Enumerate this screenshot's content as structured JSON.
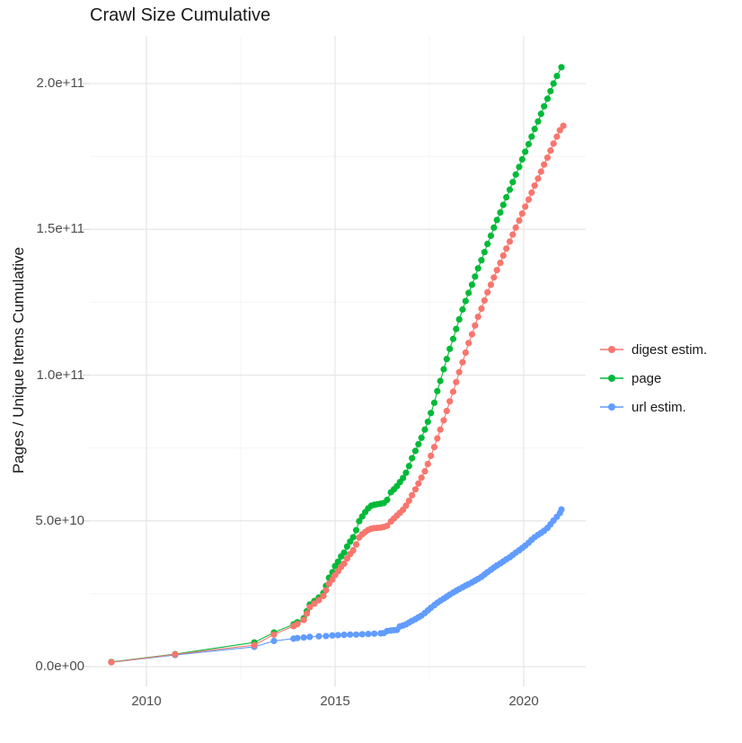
{
  "chart_data": {
    "type": "scatter+line",
    "title": "Crawl Size Cumulative",
    "xlabel": "",
    "ylabel": "Pages / Unique Items Cumulative",
    "legend_position": "right",
    "grid": true,
    "value_unit": "pages, values in billions (1e9)",
    "x_range_years": [
      2008.5,
      2021.65
    ],
    "y_range_1e9": [
      -4.3,
      216.3
    ],
    "x_ticks": [
      {
        "value": 2010,
        "label": "2010"
      },
      {
        "value": 2015,
        "label": "2015"
      },
      {
        "value": 2020,
        "label": "2020"
      }
    ],
    "x_minor_years": [
      2012.5,
      2017.5
    ],
    "y_ticks": [
      {
        "value_1e9": 0,
        "label": "0.0e+00"
      },
      {
        "value_1e9": 50,
        "label": "5.0e+10"
      },
      {
        "value_1e9": 100,
        "label": "1.0e+11"
      },
      {
        "value_1e9": 150,
        "label": "1.5e+11"
      },
      {
        "value_1e9": 200,
        "label": "2.0e+11"
      }
    ],
    "y_minor_1e9": [
      25,
      75,
      125,
      175
    ],
    "series": [
      {
        "name": "digest estim.",
        "color": "#F8766D",
        "points": [
          [
            2009.07,
            1.5
          ],
          [
            2010.76,
            4.2
          ],
          [
            2012.86,
            7.4
          ],
          [
            2013.38,
            11.0
          ],
          [
            2013.9,
            13.9
          ],
          [
            2014.0,
            14.6
          ],
          [
            2014.17,
            16.0
          ],
          [
            2014.25,
            18.2
          ],
          [
            2014.33,
            20.4
          ],
          [
            2014.45,
            21.6
          ],
          [
            2014.57,
            22.8
          ],
          [
            2014.69,
            24.2
          ],
          [
            2014.76,
            26.2
          ],
          [
            2014.84,
            28.4
          ],
          [
            2014.93,
            29.9
          ],
          [
            2015.0,
            31.4
          ],
          [
            2015.08,
            32.7
          ],
          [
            2015.16,
            34.2
          ],
          [
            2015.24,
            35.3
          ],
          [
            2015.32,
            37.1
          ],
          [
            2015.4,
            38.6
          ],
          [
            2015.48,
            39.9
          ],
          [
            2015.56,
            41.9
          ],
          [
            2015.64,
            44.3
          ],
          [
            2015.72,
            45.4
          ],
          [
            2015.8,
            46.2
          ],
          [
            2015.88,
            46.9
          ],
          [
            2015.96,
            47.3
          ],
          [
            2016.04,
            47.5
          ],
          [
            2016.12,
            47.6
          ],
          [
            2016.21,
            47.7
          ],
          [
            2016.29,
            47.9
          ],
          [
            2016.38,
            48.3
          ],
          [
            2016.48,
            49.8
          ],
          [
            2016.56,
            50.8
          ],
          [
            2016.64,
            51.8
          ],
          [
            2016.72,
            52.8
          ],
          [
            2016.8,
            53.8
          ],
          [
            2016.88,
            55.2
          ],
          [
            2016.96,
            56.9
          ],
          [
            2017.04,
            58.8
          ],
          [
            2017.13,
            60.8
          ],
          [
            2017.21,
            62.8
          ],
          [
            2017.29,
            64.8
          ],
          [
            2017.38,
            67.0
          ],
          [
            2017.46,
            69.5
          ],
          [
            2017.54,
            72.3
          ],
          [
            2017.63,
            75.3
          ],
          [
            2017.71,
            78.3
          ],
          [
            2017.79,
            81.3
          ],
          [
            2017.88,
            84.5
          ],
          [
            2017.96,
            87.7
          ],
          [
            2018.04,
            91.0
          ],
          [
            2018.13,
            94.3
          ],
          [
            2018.21,
            97.6
          ],
          [
            2018.29,
            101.0
          ],
          [
            2018.38,
            104.4
          ],
          [
            2018.46,
            107.7
          ],
          [
            2018.54,
            111.0
          ],
          [
            2018.63,
            114.0
          ],
          [
            2018.71,
            117.0
          ],
          [
            2018.79,
            120.0
          ],
          [
            2018.88,
            122.8
          ],
          [
            2018.96,
            125.6
          ],
          [
            2019.04,
            128.4
          ],
          [
            2019.13,
            131.0
          ],
          [
            2019.21,
            133.5
          ],
          [
            2019.29,
            136.0
          ],
          [
            2019.38,
            138.5
          ],
          [
            2019.46,
            141.0
          ],
          [
            2019.54,
            143.4
          ],
          [
            2019.63,
            145.8
          ],
          [
            2019.71,
            148.2
          ],
          [
            2019.79,
            150.6
          ],
          [
            2019.88,
            153.0
          ],
          [
            2019.96,
            155.4
          ],
          [
            2020.04,
            157.8
          ],
          [
            2020.13,
            160.2
          ],
          [
            2020.21,
            162.6
          ],
          [
            2020.29,
            165.0
          ],
          [
            2020.38,
            167.4
          ],
          [
            2020.46,
            169.8
          ],
          [
            2020.54,
            172.2
          ],
          [
            2020.63,
            174.6
          ],
          [
            2020.71,
            177.0
          ],
          [
            2020.79,
            179.4
          ],
          [
            2020.88,
            181.8
          ],
          [
            2020.96,
            184.0
          ],
          [
            2021.05,
            185.5
          ]
        ]
      },
      {
        "name": "page",
        "color": "#00BA38",
        "points": [
          [
            2009.07,
            1.6
          ],
          [
            2010.76,
            4.3
          ],
          [
            2012.86,
            8.3
          ],
          [
            2013.38,
            11.7
          ],
          [
            2013.9,
            14.5
          ],
          [
            2014.0,
            15.2
          ],
          [
            2014.17,
            16.6
          ],
          [
            2014.25,
            19.0
          ],
          [
            2014.33,
            21.3
          ],
          [
            2014.45,
            22.5
          ],
          [
            2014.57,
            23.7
          ],
          [
            2014.69,
            25.3
          ],
          [
            2014.76,
            27.7
          ],
          [
            2014.84,
            30.5
          ],
          [
            2014.93,
            32.4
          ],
          [
            2015.0,
            34.5
          ],
          [
            2015.08,
            36.0
          ],
          [
            2015.16,
            37.8
          ],
          [
            2015.24,
            39.1
          ],
          [
            2015.32,
            41.2
          ],
          [
            2015.4,
            42.9
          ],
          [
            2015.48,
            44.4
          ],
          [
            2015.56,
            46.8
          ],
          [
            2015.64,
            49.9
          ],
          [
            2015.72,
            51.5
          ],
          [
            2015.8,
            53.0
          ],
          [
            2015.88,
            54.3
          ],
          [
            2015.96,
            55.2
          ],
          [
            2016.04,
            55.5
          ],
          [
            2016.12,
            55.7
          ],
          [
            2016.21,
            55.9
          ],
          [
            2016.29,
            56.1
          ],
          [
            2016.38,
            57.2
          ],
          [
            2016.48,
            59.8
          ],
          [
            2016.56,
            60.8
          ],
          [
            2016.64,
            61.9
          ],
          [
            2016.72,
            63.3
          ],
          [
            2016.8,
            64.7
          ],
          [
            2016.88,
            66.5
          ],
          [
            2016.96,
            68.8
          ],
          [
            2017.04,
            71.5
          ],
          [
            2017.13,
            74.0
          ],
          [
            2017.21,
            76.3
          ],
          [
            2017.29,
            78.5
          ],
          [
            2017.38,
            81.3
          ],
          [
            2017.46,
            84.0
          ],
          [
            2017.54,
            87.0
          ],
          [
            2017.63,
            90.5
          ],
          [
            2017.71,
            94.5
          ],
          [
            2017.79,
            98.0
          ],
          [
            2017.88,
            102.0
          ],
          [
            2017.96,
            105.5
          ],
          [
            2018.04,
            109.0
          ],
          [
            2018.13,
            112.4
          ],
          [
            2018.21,
            115.8
          ],
          [
            2018.29,
            119.1
          ],
          [
            2018.38,
            122.5
          ],
          [
            2018.46,
            125.4
          ],
          [
            2018.54,
            128.2
          ],
          [
            2018.63,
            131.0
          ],
          [
            2018.71,
            133.8
          ],
          [
            2018.79,
            136.6
          ],
          [
            2018.88,
            139.4
          ],
          [
            2018.96,
            142.2
          ],
          [
            2019.04,
            145.0
          ],
          [
            2019.13,
            147.8
          ],
          [
            2019.21,
            150.6
          ],
          [
            2019.29,
            153.2
          ],
          [
            2019.38,
            155.8
          ],
          [
            2019.46,
            158.4
          ],
          [
            2019.54,
            161.0
          ],
          [
            2019.63,
            163.6
          ],
          [
            2019.71,
            166.2
          ],
          [
            2019.79,
            168.8
          ],
          [
            2019.88,
            171.4
          ],
          [
            2019.96,
            174.0
          ],
          [
            2020.04,
            176.6
          ],
          [
            2020.13,
            179.2
          ],
          [
            2020.21,
            181.8
          ],
          [
            2020.29,
            184.4
          ],
          [
            2020.38,
            187.0
          ],
          [
            2020.46,
            189.6
          ],
          [
            2020.54,
            192.2
          ],
          [
            2020.63,
            194.8
          ],
          [
            2020.71,
            197.4
          ],
          [
            2020.79,
            200.0
          ],
          [
            2020.88,
            202.6
          ],
          [
            2021.0,
            205.6
          ]
        ]
      },
      {
        "name": "url estim.",
        "color": "#619CFF",
        "points": [
          [
            2009.07,
            1.5
          ],
          [
            2010.76,
            4.0
          ],
          [
            2012.86,
            6.8
          ],
          [
            2013.38,
            8.8
          ],
          [
            2013.9,
            9.6
          ],
          [
            2014.0,
            9.8
          ],
          [
            2014.17,
            10.0
          ],
          [
            2014.33,
            10.2
          ],
          [
            2014.57,
            10.4
          ],
          [
            2014.76,
            10.5
          ],
          [
            2014.93,
            10.7
          ],
          [
            2015.08,
            10.8
          ],
          [
            2015.24,
            10.9
          ],
          [
            2015.4,
            11.0
          ],
          [
            2015.56,
            11.0
          ],
          [
            2015.72,
            11.1
          ],
          [
            2015.88,
            11.2
          ],
          [
            2016.04,
            11.3
          ],
          [
            2016.21,
            11.4
          ],
          [
            2016.29,
            11.5
          ],
          [
            2016.38,
            12.2
          ],
          [
            2016.48,
            12.4
          ],
          [
            2016.56,
            12.5
          ],
          [
            2016.64,
            12.6
          ],
          [
            2016.72,
            13.8
          ],
          [
            2016.8,
            14.1
          ],
          [
            2016.88,
            14.5
          ],
          [
            2016.96,
            15.1
          ],
          [
            2017.04,
            15.7
          ],
          [
            2017.13,
            16.3
          ],
          [
            2017.21,
            16.9
          ],
          [
            2017.29,
            17.5
          ],
          [
            2017.38,
            18.4
          ],
          [
            2017.46,
            19.3
          ],
          [
            2017.54,
            20.2
          ],
          [
            2017.63,
            21.1
          ],
          [
            2017.71,
            21.9
          ],
          [
            2017.79,
            22.6
          ],
          [
            2017.88,
            23.3
          ],
          [
            2017.96,
            24.0
          ],
          [
            2018.04,
            24.7
          ],
          [
            2018.13,
            25.4
          ],
          [
            2018.21,
            26.0
          ],
          [
            2018.29,
            26.6
          ],
          [
            2018.38,
            27.2
          ],
          [
            2018.46,
            27.8
          ],
          [
            2018.54,
            28.3
          ],
          [
            2018.63,
            28.9
          ],
          [
            2018.71,
            29.5
          ],
          [
            2018.79,
            30.1
          ],
          [
            2018.88,
            30.8
          ],
          [
            2018.96,
            31.6
          ],
          [
            2019.04,
            32.4
          ],
          [
            2019.13,
            33.2
          ],
          [
            2019.21,
            34.0
          ],
          [
            2019.29,
            34.7
          ],
          [
            2019.38,
            35.4
          ],
          [
            2019.46,
            36.1
          ],
          [
            2019.54,
            36.8
          ],
          [
            2019.63,
            37.5
          ],
          [
            2019.71,
            38.3
          ],
          [
            2019.79,
            39.1
          ],
          [
            2019.88,
            39.9
          ],
          [
            2019.96,
            40.7
          ],
          [
            2020.04,
            41.5
          ],
          [
            2020.13,
            42.5
          ],
          [
            2020.21,
            43.5
          ],
          [
            2020.29,
            44.4
          ],
          [
            2020.38,
            45.2
          ],
          [
            2020.46,
            45.9
          ],
          [
            2020.54,
            46.6
          ],
          [
            2020.63,
            47.6
          ],
          [
            2020.71,
            48.8
          ],
          [
            2020.79,
            50.1
          ],
          [
            2020.88,
            51.4
          ],
          [
            2020.96,
            52.7
          ],
          [
            2021.0,
            53.9
          ]
        ]
      }
    ]
  },
  "style_colors": {
    "grid_major": "#E6E6E6",
    "grid_minor": "#F4F4F4",
    "tick_stub": "#DADADA",
    "tick_text": "#4d4d4d",
    "text": "#1a1a1a"
  }
}
